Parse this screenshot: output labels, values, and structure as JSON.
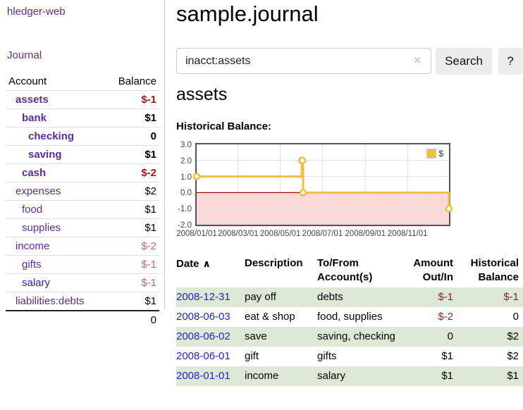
{
  "app_title": "hledger-web",
  "sidebar": {
    "journal_link": "Journal",
    "accounts": {
      "header_account": "Account",
      "header_balance": "Balance",
      "rows": [
        {
          "name": "assets",
          "balance": "$-1"
        },
        {
          "name": "bank",
          "balance": "$1"
        },
        {
          "name": "checking",
          "balance": "0"
        },
        {
          "name": "saving",
          "balance": "$1"
        },
        {
          "name": "cash",
          "balance": "$-2"
        },
        {
          "name": "expenses",
          "balance": "$2"
        },
        {
          "name": "food",
          "balance": "$1"
        },
        {
          "name": "supplies",
          "balance": "$1"
        },
        {
          "name": "income",
          "balance": "$-2"
        },
        {
          "name": "gifts",
          "balance": "$-1"
        },
        {
          "name": "salary",
          "balance": "$-1"
        },
        {
          "name": "liabilities:debts",
          "balance": "$1"
        }
      ],
      "total": "0"
    }
  },
  "main": {
    "title": "sample.journal",
    "search": {
      "value": "inacct:assets",
      "clear_icon": "×",
      "button_label": "Search",
      "help_label": "?"
    },
    "account_heading": "assets",
    "section_heading": "Historical Balance:"
  },
  "chart_data": {
    "type": "line",
    "title": "Historical Balance",
    "xlabel": "",
    "ylabel": "",
    "ylim": [
      -2,
      3
    ],
    "x_range": [
      "2008-01-01",
      "2008-12-31"
    ],
    "yticks": [
      "3.0",
      "2.0",
      "1.0",
      "0.0",
      "-1.0",
      "-2.0"
    ],
    "xticks": [
      "2008/01/01",
      "2008/03/01",
      "2008/05/01",
      "2008/07/01",
      "2008/09/01",
      "2008/11/01"
    ],
    "xtick_dates": [
      "2008-01-01",
      "2008-03-01",
      "2008-05-01",
      "2008-07-01",
      "2008-09-01",
      "2008-11-01"
    ],
    "grid": true,
    "legend_position": "top-right",
    "step": true,
    "negative_fill": "#fcd9d9",
    "zero_line_color": "#9d0000",
    "series": [
      {
        "name": "$",
        "color": "#edc240",
        "points": [
          [
            "2008-01-01",
            1
          ],
          [
            "2008-06-01",
            2
          ],
          [
            "2008-06-02",
            2
          ],
          [
            "2008-06-03",
            0
          ],
          [
            "2008-12-31",
            -1
          ]
        ]
      }
    ]
  },
  "register": {
    "headers": {
      "date": "Date",
      "sort_icon": "∧",
      "description": "Description",
      "accounts": "To/From Account(s)",
      "amount": "Amount Out/In",
      "balance": "Historical Balance"
    },
    "rows": [
      {
        "date": "2008-12-31",
        "description": "pay off",
        "accounts": "debts",
        "amount": "$-1",
        "balance": "$-1"
      },
      {
        "date": "2008-06-03",
        "description": "eat & shop",
        "accounts": "food, supplies",
        "amount": "$-2",
        "balance": "0"
      },
      {
        "date": "2008-06-02",
        "description": "save",
        "accounts": "saving, checking",
        "amount": "0",
        "balance": "$2"
      },
      {
        "date": "2008-06-01",
        "description": "gift",
        "accounts": "gifts",
        "amount": "$1",
        "balance": "$2"
      },
      {
        "date": "2008-01-01",
        "description": "income",
        "accounts": "salary",
        "amount": "$1",
        "balance": "$1"
      }
    ]
  }
}
